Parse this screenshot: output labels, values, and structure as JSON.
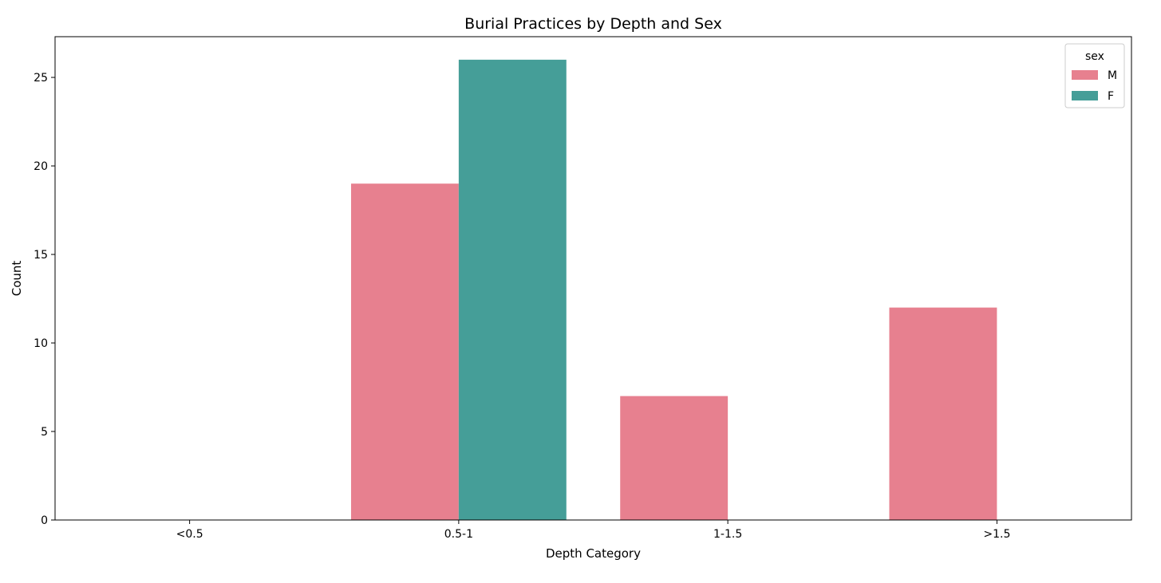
{
  "chart_data": {
    "type": "bar",
    "title": "Burial Practices by Depth and Sex",
    "xlabel": "Depth Category",
    "ylabel": "Count",
    "categories": [
      "<0.5",
      "0.5-1",
      "1-1.5",
      ">1.5"
    ],
    "series": [
      {
        "name": "M",
        "color": "#e7808f",
        "values": [
          0,
          19,
          7,
          12
        ]
      },
      {
        "name": "F",
        "color": "#459e98",
        "values": [
          0,
          26,
          0,
          0
        ]
      }
    ],
    "ylim": [
      0,
      27.3
    ],
    "yticks": [
      0,
      5,
      10,
      15,
      20,
      25
    ],
    "legend": {
      "title": "sex",
      "placement": "top-right"
    },
    "grid": false
  }
}
